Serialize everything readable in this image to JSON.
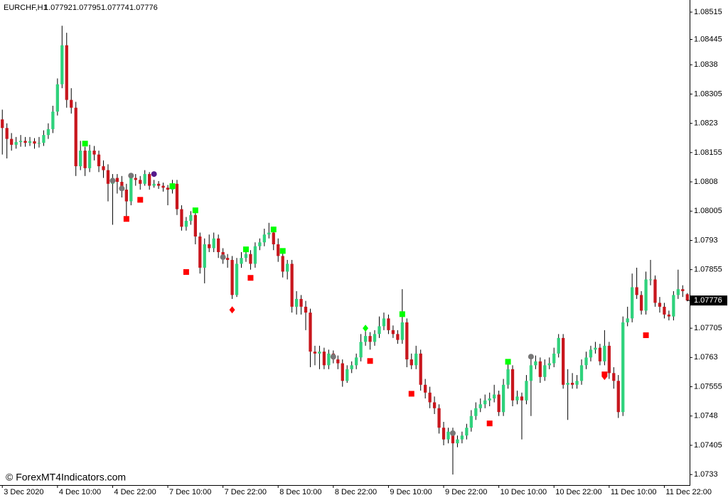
{
  "chart_data": {
    "type": "candlestick",
    "symbol": "EURCHF,H1",
    "header_ohlc": [
      1.07792,
      1.07795,
      1.07774,
      1.07776
    ],
    "watermark": "© ForexMT4Indicators.com",
    "last_price": 1.07776,
    "up_color": "#2fd27c",
    "down_color": "#c8161d",
    "wick_color": "#000000",
    "ylim": [
      1.07303,
      1.08546
    ],
    "yticks": [
      1.08515,
      1.08445,
      1.0838,
      1.08305,
      1.0823,
      1.08155,
      1.0808,
      1.08005,
      1.0793,
      1.07855,
      1.07705,
      1.0763,
      1.07555,
      1.0748,
      1.07405,
      1.0733
    ],
    "xlim": [
      -0.5,
      149.5
    ],
    "xticks": [
      {
        "value": 0,
        "label": "3 Dec 2020"
      },
      {
        "value": 12,
        "label": "4 Dec 10:00"
      },
      {
        "value": 24,
        "label": "4 Dec 22:00"
      },
      {
        "value": 36,
        "label": "7 Dec 10:00"
      },
      {
        "value": 48,
        "label": "7 Dec 22:00"
      },
      {
        "value": 60,
        "label": "8 Dec 10:00"
      },
      {
        "value": 72,
        "label": "8 Dec 22:00"
      },
      {
        "value": 84,
        "label": "9 Dec 10:00"
      },
      {
        "value": 96,
        "label": "9 Dec 22:00"
      },
      {
        "value": 108,
        "label": "10 Dec 10:00"
      },
      {
        "value": 120,
        "label": "10 Dec 22:00"
      },
      {
        "value": 132,
        "label": "11 Dec 10:00"
      },
      {
        "value": 144,
        "label": "11 Dec 22:00"
      }
    ],
    "candles": [
      [
        1.0824,
        1.08265,
        1.0815,
        1.08218
      ],
      [
        1.08218,
        1.0823,
        1.0814,
        1.0819
      ],
      [
        1.0819,
        1.08205,
        1.0816,
        1.08175
      ],
      [
        1.08175,
        1.08195,
        1.08165,
        1.08182
      ],
      [
        1.08182,
        1.082,
        1.0817,
        1.08185
      ],
      [
        1.08185,
        1.08195,
        1.0817,
        1.0818
      ],
      [
        1.0818,
        1.08195,
        1.08172,
        1.08184
      ],
      [
        1.08184,
        1.08192,
        1.08165,
        1.08178
      ],
      [
        1.08178,
        1.08195,
        1.08168,
        1.0818
      ],
      [
        1.0818,
        1.08212,
        1.08172,
        1.082
      ],
      [
        1.082,
        1.0823,
        1.0819,
        1.08215
      ],
      [
        1.08215,
        1.08275,
        1.08205,
        1.0826
      ],
      [
        1.0826,
        1.08345,
        1.0825,
        1.0833
      ],
      [
        1.0833,
        1.0848,
        1.0832,
        1.0843
      ],
      [
        1.0843,
        1.08462,
        1.0827,
        1.0829
      ],
      [
        1.0829,
        1.0832,
        1.08255,
        1.0827
      ],
      [
        1.0827,
        1.08285,
        1.08095,
        1.0812
      ],
      [
        1.0812,
        1.08185,
        1.0811,
        1.0816
      ],
      [
        1.0816,
        1.0817,
        1.08095,
        1.08115
      ],
      [
        1.08115,
        1.08175,
        1.08105,
        1.0816
      ],
      [
        1.0816,
        1.08172,
        1.08135,
        1.0815
      ],
      [
        1.0815,
        1.0816,
        1.08105,
        1.0812
      ],
      [
        1.0812,
        1.08135,
        1.0809,
        1.0811
      ],
      [
        1.0811,
        1.08125,
        1.0803,
        1.08075
      ],
      [
        1.08075,
        1.081,
        1.0797,
        1.0809
      ],
      [
        1.0809,
        1.081,
        1.0805,
        1.0808
      ],
      [
        1.0808,
        1.08095,
        1.0804,
        1.0806
      ],
      [
        1.0806,
        1.08075,
        1.07985,
        1.0803
      ],
      [
        1.0803,
        1.081,
        1.0802,
        1.0809
      ],
      [
        1.0809,
        1.081,
        1.0807,
        1.08085
      ],
      [
        1.08085,
        1.08095,
        1.0806,
        1.08075
      ],
      [
        1.08075,
        1.0811,
        1.0807,
        1.081
      ],
      [
        1.081,
        1.08105,
        1.0806,
        1.0807
      ],
      [
        1.0807,
        1.08085,
        1.08065,
        1.08075
      ],
      [
        1.08075,
        1.08082,
        1.08062,
        1.0807
      ],
      [
        1.0807,
        1.08078,
        1.08055,
        1.08065
      ],
      [
        1.08065,
        1.08072,
        1.0802,
        1.0806
      ],
      [
        1.0806,
        1.08085,
        1.0805,
        1.08075
      ],
      [
        1.08075,
        1.08085,
        1.07995,
        1.0801
      ],
      [
        1.0801,
        1.0802,
        1.07955,
        1.07965
      ],
      [
        1.07965,
        1.0799,
        1.07955,
        1.0798
      ],
      [
        1.0798,
        1.08005,
        1.0797,
        1.07995
      ],
      [
        1.07995,
        1.08,
        1.0792,
        1.0794
      ],
      [
        1.0794,
        1.0795,
        1.07845,
        1.0786
      ],
      [
        1.0786,
        1.07935,
        1.0782,
        1.0792
      ],
      [
        1.0792,
        1.07945,
        1.079,
        1.0791
      ],
      [
        1.0791,
        1.0795,
        1.079,
        1.07935
      ],
      [
        1.07935,
        1.07945,
        1.07885,
        1.079
      ],
      [
        1.079,
        1.0791,
        1.0787,
        1.07885
      ],
      [
        1.07885,
        1.07895,
        1.0786,
        1.0788
      ],
      [
        1.0788,
        1.0789,
        1.0778,
        1.0779
      ],
      [
        1.0779,
        1.07885,
        1.07785,
        1.0787
      ],
      [
        1.0787,
        1.079,
        1.0786,
        1.07885
      ],
      [
        1.07885,
        1.0791,
        1.07875,
        1.07895
      ],
      [
        1.07895,
        1.07905,
        1.07855,
        1.0787
      ],
      [
        1.0787,
        1.07925,
        1.0786,
        1.07915
      ],
      [
        1.07915,
        1.07935,
        1.07905,
        1.07925
      ],
      [
        1.07925,
        1.0796,
        1.07915,
        1.07945
      ],
      [
        1.07945,
        1.07975,
        1.07935,
        1.0795
      ],
      [
        1.0795,
        1.07965,
        1.07905,
        1.0792
      ],
      [
        1.0792,
        1.07935,
        1.07875,
        1.0789
      ],
      [
        1.0789,
        1.07905,
        1.07835,
        1.0785
      ],
      [
        1.0785,
        1.0788,
        1.0783,
        1.0787
      ],
      [
        1.0787,
        1.0788,
        1.07745,
        1.0776
      ],
      [
        1.0776,
        1.078,
        1.0774,
        1.0778
      ],
      [
        1.0778,
        1.0779,
        1.0774,
        1.0776
      ],
      [
        1.0776,
        1.07775,
        1.077,
        1.07745
      ],
      [
        1.07745,
        1.07755,
        1.07605,
        1.07645
      ],
      [
        1.07645,
        1.0766,
        1.0761,
        1.0764
      ],
      [
        1.0764,
        1.0766,
        1.076,
        1.07645
      ],
      [
        1.07645,
        1.07655,
        1.076,
        1.0761
      ],
      [
        1.0761,
        1.0765,
        1.076,
        1.0764
      ],
      [
        1.0764,
        1.07648,
        1.07615,
        1.07625
      ],
      [
        1.07625,
        1.07635,
        1.076,
        1.07615
      ],
      [
        1.07615,
        1.07625,
        1.07555,
        1.0757
      ],
      [
        1.0757,
        1.0761,
        1.07565,
        1.076
      ],
      [
        1.076,
        1.0762,
        1.0759,
        1.0761
      ],
      [
        1.0761,
        1.0764,
        1.076,
        1.0763
      ],
      [
        1.0763,
        1.0769,
        1.0762,
        1.0767
      ],
      [
        1.0767,
        1.077,
        1.0766,
        1.07685
      ],
      [
        1.07685,
        1.07695,
        1.0765,
        1.0767
      ],
      [
        1.0767,
        1.077,
        1.0766,
        1.0769
      ],
      [
        1.0769,
        1.07735,
        1.0768,
        1.0771
      ],
      [
        1.0771,
        1.07745,
        1.077,
        1.0773
      ],
      [
        1.0773,
        1.0774,
        1.0769,
        1.077
      ],
      [
        1.077,
        1.07712,
        1.0768,
        1.0769
      ],
      [
        1.0769,
        1.077,
        1.07665,
        1.07675
      ],
      [
        1.07675,
        1.07805,
        1.07665,
        1.0772
      ],
      [
        1.0772,
        1.0773,
        1.07605,
        1.07625
      ],
      [
        1.07625,
        1.0764,
        1.076,
        1.0761
      ],
      [
        1.0761,
        1.0766,
        1.076,
        1.0764
      ],
      [
        1.0764,
        1.0765,
        1.07545,
        1.0756
      ],
      [
        1.0756,
        1.07575,
        1.07525,
        1.0754
      ],
      [
        1.0754,
        1.07555,
        1.075,
        1.07515
      ],
      [
        1.07515,
        1.0753,
        1.07485,
        1.075
      ],
      [
        1.075,
        1.0751,
        1.07435,
        1.0745
      ],
      [
        1.0745,
        1.07465,
        1.07405,
        1.0742
      ],
      [
        1.0742,
        1.0745,
        1.0741,
        1.0744
      ],
      [
        1.0744,
        1.0745,
        1.0733,
        1.0741
      ],
      [
        1.0741,
        1.0743,
        1.074,
        1.0742
      ],
      [
        1.0742,
        1.0744,
        1.0741,
        1.0743
      ],
      [
        1.0743,
        1.0746,
        1.0742,
        1.0745
      ],
      [
        1.0745,
        1.07495,
        1.0744,
        1.0748
      ],
      [
        1.0748,
        1.07515,
        1.0747,
        1.075
      ],
      [
        1.075,
        1.07525,
        1.0749,
        1.0751
      ],
      [
        1.0751,
        1.07535,
        1.075,
        1.0752
      ],
      [
        1.0752,
        1.0754,
        1.07505,
        1.07525
      ],
      [
        1.07525,
        1.0756,
        1.07515,
        1.07535
      ],
      [
        1.07535,
        1.07545,
        1.0748,
        1.0749
      ],
      [
        1.0749,
        1.07575,
        1.0748,
        1.0756
      ],
      [
        1.0756,
        1.07625,
        1.0755,
        1.076
      ],
      [
        1.076,
        1.0761,
        1.07505,
        1.0752
      ],
      [
        1.0752,
        1.07545,
        1.0751,
        1.0753
      ],
      [
        1.0753,
        1.0754,
        1.0742,
        1.0752
      ],
      [
        1.0752,
        1.07585,
        1.0751,
        1.0757
      ],
      [
        1.0757,
        1.07625,
        1.0748,
        1.0761
      ],
      [
        1.0761,
        1.07635,
        1.076,
        1.0762
      ],
      [
        1.0762,
        1.0763,
        1.07565,
        1.0758
      ],
      [
        1.0758,
        1.07625,
        1.0757,
        1.0761
      ],
      [
        1.0761,
        1.0763,
        1.076,
        1.07615
      ],
      [
        1.07615,
        1.07655,
        1.07605,
        1.0764
      ],
      [
        1.0764,
        1.0769,
        1.0763,
        1.0768
      ],
      [
        1.0768,
        1.0769,
        1.0755,
        1.0756
      ],
      [
        1.0756,
        1.076,
        1.0747,
        1.07565
      ],
      [
        1.07565,
        1.0759,
        1.0755,
        1.0756
      ],
      [
        1.0756,
        1.07585,
        1.0755,
        1.0757
      ],
      [
        1.0757,
        1.07625,
        1.0756,
        1.0761
      ],
      [
        1.0761,
        1.07645,
        1.076,
        1.0763
      ],
      [
        1.0763,
        1.0766,
        1.0762,
        1.0765
      ],
      [
        1.0765,
        1.0767,
        1.0764,
        1.07655
      ],
      [
        1.07655,
        1.07665,
        1.0761,
        1.0762
      ],
      [
        1.0762,
        1.077,
        1.0761,
        1.0766
      ],
      [
        1.0766,
        1.0767,
        1.07575,
        1.0759
      ],
      [
        1.0759,
        1.07605,
        1.0755,
        1.0757
      ],
      [
        1.0757,
        1.07585,
        1.07475,
        1.0749
      ],
      [
        1.0749,
        1.07735,
        1.0748,
        1.0772
      ],
      [
        1.0772,
        1.0776,
        1.0771,
        1.0773
      ],
      [
        1.0773,
        1.07845,
        1.0772,
        1.0781
      ],
      [
        1.0781,
        1.0786,
        1.0778,
        1.0779
      ],
      [
        1.0779,
        1.078,
        1.0774,
        1.0775
      ],
      [
        1.0775,
        1.0785,
        1.0774,
        1.0783
      ],
      [
        1.0783,
        1.0788,
        1.07815,
        1.0783
      ],
      [
        1.0783,
        1.0784,
        1.0776,
        1.0777
      ],
      [
        1.0777,
        1.07785,
        1.07745,
        1.0776
      ],
      [
        1.0776,
        1.0777,
        1.0773,
        1.0774
      ],
      [
        1.0774,
        1.0775,
        1.07725,
        1.07735
      ],
      [
        1.07735,
        1.078,
        1.07725,
        1.0779
      ],
      [
        1.0779,
        1.07855,
        1.0778,
        1.07805
      ],
      [
        1.07805,
        1.07815,
        1.07785,
        1.078
      ],
      [
        1.07792,
        1.07795,
        1.07774,
        1.07776
      ]
    ],
    "markers": [
      {
        "bar": 18,
        "price": 1.08178,
        "shape": "square",
        "color": "#00ff00"
      },
      {
        "bar": 37,
        "price": 1.08069,
        "shape": "square",
        "color": "#00ff00"
      },
      {
        "bar": 42,
        "price": 1.08007,
        "shape": "square",
        "color": "#00ff00"
      },
      {
        "bar": 53,
        "price": 1.07907,
        "shape": "square",
        "color": "#00ff00"
      },
      {
        "bar": 59,
        "price": 1.07958,
        "shape": "square",
        "color": "#00ff00"
      },
      {
        "bar": 61,
        "price": 1.07903,
        "shape": "square",
        "color": "#00ff00"
      },
      {
        "bar": 87,
        "price": 1.07741,
        "shape": "square",
        "color": "#00ff00"
      },
      {
        "bar": 110,
        "price": 1.07619,
        "shape": "square",
        "color": "#00ff00"
      },
      {
        "bar": 27,
        "price": 1.07985,
        "shape": "square",
        "color": "#ff0000"
      },
      {
        "bar": 30,
        "price": 1.08034,
        "shape": "square",
        "color": "#ff0000"
      },
      {
        "bar": 40,
        "price": 1.07849,
        "shape": "square",
        "color": "#ff0000"
      },
      {
        "bar": 54,
        "price": 1.07834,
        "shape": "square",
        "color": "#ff0000"
      },
      {
        "bar": 80,
        "price": 1.07621,
        "shape": "square",
        "color": "#ff0000"
      },
      {
        "bar": 89,
        "price": 1.07537,
        "shape": "square",
        "color": "#ff0000"
      },
      {
        "bar": 106,
        "price": 1.07461,
        "shape": "square",
        "color": "#ff0000"
      },
      {
        "bar": 140,
        "price": 1.07687,
        "shape": "square",
        "color": "#ff0000"
      },
      {
        "bar": 50,
        "price": 1.07752,
        "shape": "diamond",
        "color": "#ff0000"
      },
      {
        "bar": 79,
        "price": 1.07705,
        "shape": "diamond",
        "color": "#00ff00"
      },
      {
        "bar": 131,
        "price": 1.07583,
        "shape": "shield",
        "color": "#ff0000"
      },
      {
        "bar": 24,
        "price": 1.08083,
        "shape": "circle",
        "color": "#777777"
      },
      {
        "bar": 26,
        "price": 1.08063,
        "shape": "circle",
        "color": "#777777"
      },
      {
        "bar": 28,
        "price": 1.08096,
        "shape": "circle",
        "color": "#777777"
      },
      {
        "bar": 48,
        "price": 1.07887,
        "shape": "circle",
        "color": "#777777"
      },
      {
        "bar": 72,
        "price": 1.07632,
        "shape": "circle",
        "color": "#777777"
      },
      {
        "bar": 98,
        "price": 1.07436,
        "shape": "circle",
        "color": "#777777"
      },
      {
        "bar": 115,
        "price": 1.07632,
        "shape": "circle",
        "color": "#777777"
      },
      {
        "bar": 33,
        "price": 1.081,
        "shape": "circle",
        "color": "#551a8b"
      }
    ]
  }
}
